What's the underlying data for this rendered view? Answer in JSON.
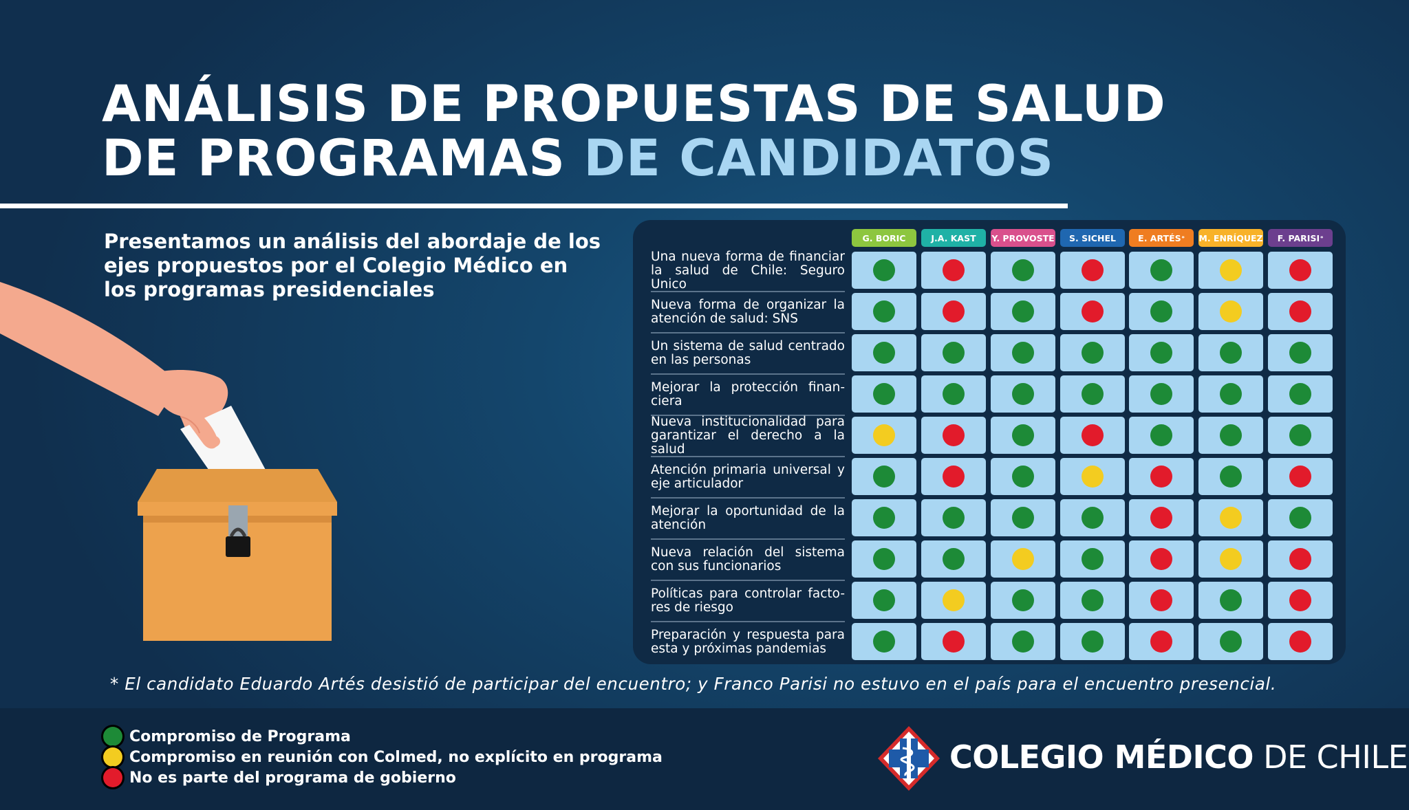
{
  "title": {
    "line1": "ANÁLISIS DE PROPUESTAS DE SALUD",
    "line2_a": "DE PROGRAMAS ",
    "line2_b": "DE CANDIDATOS"
  },
  "intro": "Presentamos un análisis del abordaje de los ejes propuestos por el Colegio Médico en los programas presidenciales",
  "colors": {
    "green": "#1d8a37",
    "yellow": "#f3cc20",
    "red": "#e21b2b",
    "cell": "#a9d6f2",
    "panel": "#0f2a45",
    "accent": "#a9d6f2"
  },
  "candidates": [
    {
      "label": "G. BORIC",
      "mark": "",
      "color": "#8dc63f"
    },
    {
      "label": "J.A. KAST",
      "mark": "",
      "color": "#1fb1a6"
    },
    {
      "label": "Y. PROVOSTE",
      "mark": "",
      "color": "#d9508c"
    },
    {
      "label": "S. SICHEL",
      "mark": "",
      "color": "#1f67b0"
    },
    {
      "label": "E. ARTÉS",
      "mark": "*",
      "color": "#ef7d21"
    },
    {
      "label": "M. ENRÍQUEZ",
      "mark": "",
      "color": "#f8b229"
    },
    {
      "label": "F. PARISI",
      "mark": "*",
      "color": "#6c3f8e"
    }
  ],
  "rows": [
    {
      "label": "Una nueva forma de financiar la salud de Chile: Seguro Unico",
      "values": [
        "green",
        "red",
        "green",
        "red",
        "green",
        "yellow",
        "red"
      ]
    },
    {
      "label": "Nueva forma de organizar la atención de salud: SNS",
      "values": [
        "green",
        "red",
        "green",
        "red",
        "green",
        "yellow",
        "red"
      ]
    },
    {
      "label": "Un sistema de salud centrado en las personas",
      "values": [
        "green",
        "green",
        "green",
        "green",
        "green",
        "green",
        "green"
      ]
    },
    {
      "label": "Mejorar la protección finan-ciera",
      "values": [
        "green",
        "green",
        "green",
        "green",
        "green",
        "green",
        "green"
      ]
    },
    {
      "label": "Nueva institucionalidad para garantizar el derecho a la salud",
      "values": [
        "yellow",
        "red",
        "green",
        "red",
        "green",
        "green",
        "green"
      ]
    },
    {
      "label": "Atención primaria universal y eje articulador",
      "values": [
        "green",
        "red",
        "green",
        "yellow",
        "red",
        "green",
        "red"
      ]
    },
    {
      "label": "Mejorar la oportunidad de la atención",
      "values": [
        "green",
        "green",
        "green",
        "green",
        "red",
        "yellow",
        "green"
      ]
    },
    {
      "label": "Nueva relación del sistema con sus funcionarios",
      "values": [
        "green",
        "green",
        "yellow",
        "green",
        "red",
        "yellow",
        "red"
      ]
    },
    {
      "label": "Políticas para controlar facto-res de riesgo",
      "values": [
        "green",
        "yellow",
        "green",
        "green",
        "red",
        "green",
        "red"
      ]
    },
    {
      "label": "Preparación y respuesta para esta y próximas pandemias",
      "values": [
        "green",
        "red",
        "green",
        "green",
        "red",
        "green",
        "red"
      ]
    }
  ],
  "footnote": "* El candidato Eduardo Artés desistió de participar del encuentro; y Franco Parisi no estuvo en el país para el encuentro presencial.",
  "legend": [
    {
      "color": "green",
      "text": "Compromiso de Programa"
    },
    {
      "color": "yellow",
      "text": "Compromiso en reunión con Colmed, no explícito en programa"
    },
    {
      "color": "red",
      "text": "No es parte del programa de gobierno"
    }
  ],
  "org": {
    "name_bold": "COLEGIO MÉDICO",
    "name_light": " DE CHILE"
  }
}
